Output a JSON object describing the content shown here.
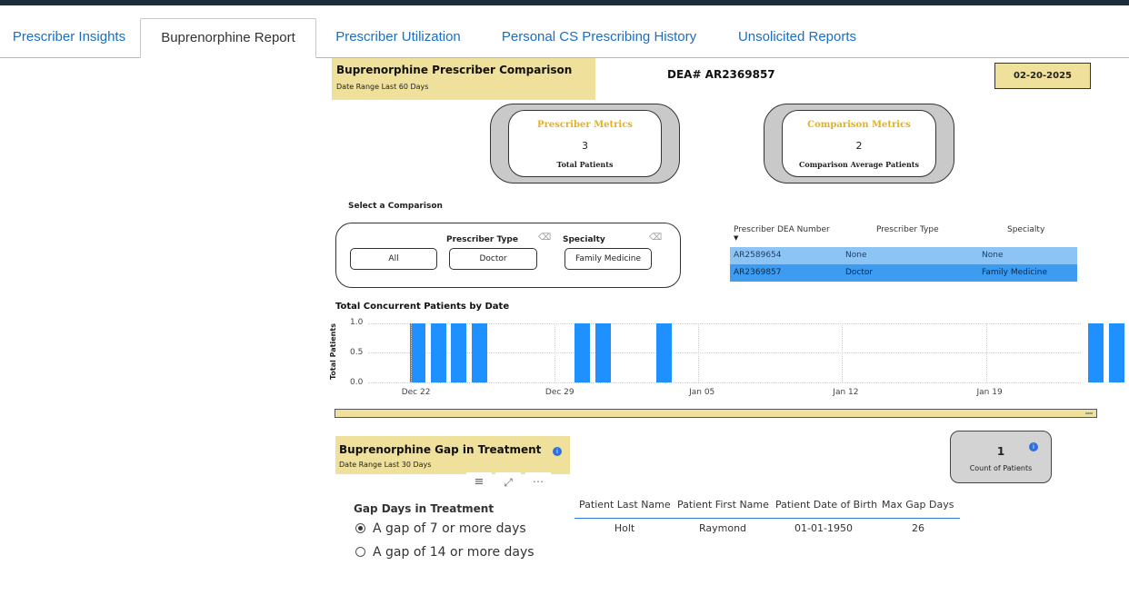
{
  "tabs": [
    {
      "label": "Prescriber Insights"
    },
    {
      "label": "Buprenorphine Report"
    },
    {
      "label": "Prescriber Utilization"
    },
    {
      "label": "Personal CS Prescribing History"
    },
    {
      "label": "Unsolicited Reports"
    }
  ],
  "header": {
    "title": "Buprenorphine Prescriber Comparison",
    "subtitle": "Date Range Last 60 Days",
    "dea": "DEA# AR2369857",
    "date": "02-20-2025"
  },
  "prescriber_metrics": {
    "title": "Prescriber Metrics",
    "value": "3",
    "label": "Total Patients"
  },
  "comparison_metrics": {
    "title": "Comparison Metrics",
    "value": "2",
    "label": "Comparison Average Patients"
  },
  "comparison": {
    "select_label": "Select a Comparison",
    "all_label": "All",
    "type_label": "Prescriber Type",
    "type_value": "Doctor",
    "specialty_label": "Specialty",
    "specialty_value": "Family Medicine"
  },
  "dea_table": {
    "headers": [
      "Prescriber DEA Number",
      "Prescriber Type",
      "Specialty"
    ],
    "rows": [
      [
        "AR2589654",
        "None",
        "None"
      ],
      [
        "AR2369857",
        "Doctor",
        "Family Medicine"
      ]
    ],
    "row_colors": [
      "#8cc4f5",
      "#3d9bf0"
    ]
  },
  "chart_data": {
    "type": "bar",
    "title": "Total Concurrent Patients by Date",
    "ylabel": "Total Patients",
    "xlabel": "",
    "ylim": [
      0,
      1
    ],
    "yticks": [
      "1.0",
      "0.5",
      "0.0"
    ],
    "xticks": [
      "Dec 22",
      "Dec 29",
      "Jan 05",
      "Jan 12",
      "Jan 19"
    ],
    "x_start": "Dec 20",
    "x": [
      "Dec 22",
      "Dec 23",
      "Dec 24",
      "Dec 25",
      "Dec 30",
      "Dec 31",
      "Jan 03",
      "Jan 24",
      "Jan 25"
    ],
    "values": [
      1,
      1,
      1,
      1,
      1,
      1,
      1,
      1,
      1
    ],
    "bar_color": "#1e90ff"
  },
  "gap": {
    "title": "Buprenorphine Gap in Treatment",
    "subtitle": "Date Range Last 30 Days",
    "count_value": "1",
    "count_label": "Count of Patients",
    "filter_title": "Gap Days in Treatment",
    "options": [
      "A gap of 7 or more days",
      "A gap of 14 or more days"
    ],
    "headers": [
      "Patient Last Name",
      "Patient First Name",
      "Patient Date of Birth",
      "Max Gap Days"
    ],
    "rows": [
      [
        "Holt",
        "Raymond",
        "01-01-1950",
        "26"
      ]
    ]
  }
}
